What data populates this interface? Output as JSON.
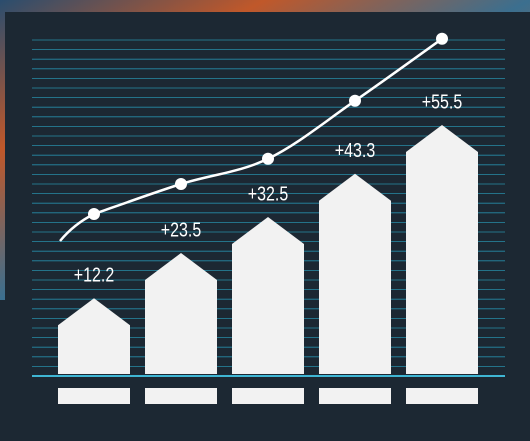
{
  "chart_data": {
    "type": "bar",
    "values": [
      12.2,
      23.5,
      32.5,
      43.3,
      55.5
    ],
    "value_labels": [
      "+12.2",
      "+23.5",
      "+32.5",
      "+43.3",
      "+55.5"
    ],
    "color": "#f2f2f2",
    "line": {
      "values": [
        40,
        47.5,
        53.8,
        68.3,
        83.8
      ],
      "color": "#ffffff"
    }
  }
}
